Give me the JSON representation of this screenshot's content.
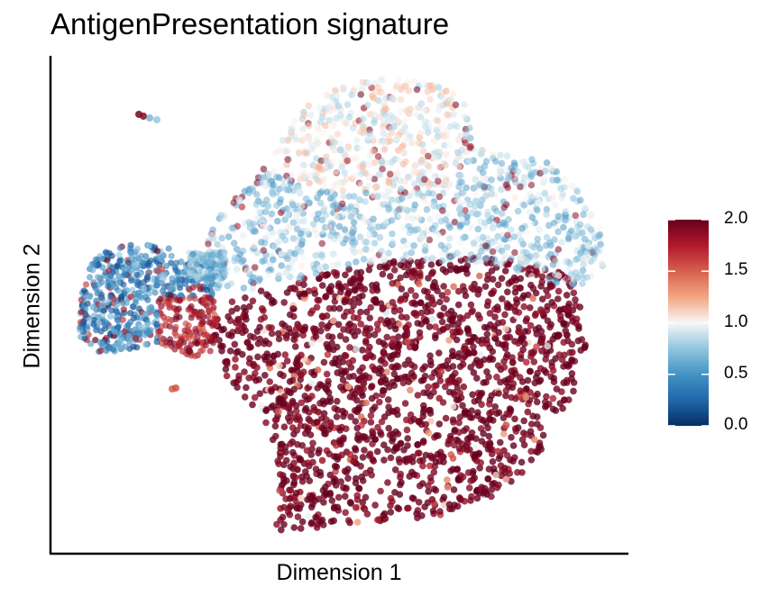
{
  "chart_data": {
    "type": "scatter",
    "title": "AntigenPresentation signature",
    "xlabel": "Dimension 1",
    "ylabel": "Dimension 2",
    "color_scale": {
      "name": "RdBu (reversed)",
      "min": 0.0,
      "max": 2.0,
      "ticks": [
        "0.0",
        "0.5",
        "1.0",
        "1.5",
        "2.0"
      ],
      "stops": [
        {
          "value": 0.0,
          "color": "#053061"
        },
        {
          "value": 0.25,
          "color": "#2166ac"
        },
        {
          "value": 0.5,
          "color": "#4393c3"
        },
        {
          "value": 0.75,
          "color": "#92c5de"
        },
        {
          "value": 1.0,
          "color": "#f7f7f7"
        },
        {
          "value": 1.25,
          "color": "#f4a582"
        },
        {
          "value": 1.5,
          "color": "#d6604d"
        },
        {
          "value": 1.75,
          "color": "#b2182b"
        },
        {
          "value": 2.0,
          "color": "#67001f"
        }
      ]
    },
    "grid": false,
    "legend": "right",
    "axis_ticks": false
  }
}
